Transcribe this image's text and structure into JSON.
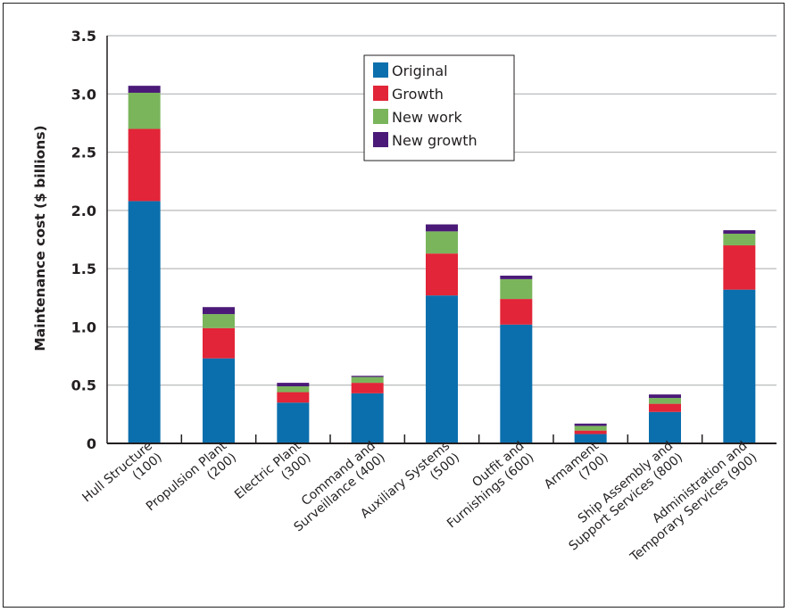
{
  "chart_data": {
    "type": "bar",
    "stacked": true,
    "title": "",
    "xlabel": "",
    "ylabel": "Maintenance cost ($ billions)",
    "ylim": [
      0,
      3.5
    ],
    "yticks": [
      "0",
      "0.5",
      "1.0",
      "1.5",
      "2.0",
      "2.5",
      "3.0",
      "3.5"
    ],
    "grid": true,
    "legend_position": "top-center",
    "categories": [
      [
        "Hull Structure",
        "(100)"
      ],
      [
        "Propulsion Plant",
        "(200)"
      ],
      [
        "Electric Plant",
        "(300)"
      ],
      [
        "Command and",
        "Surveillance (400)"
      ],
      [
        "Auxiliary Systems",
        "(500)"
      ],
      [
        "Outfit and",
        "Furnishings (600)"
      ],
      [
        "Armament",
        "(700)"
      ],
      [
        "Ship Assembly and",
        "Support Services (800)"
      ],
      [
        "Administration and",
        "Temporary Services (900)"
      ]
    ],
    "series": [
      {
        "name": "Original",
        "color": "#0b6fad",
        "values": [
          2.08,
          0.73,
          0.35,
          0.43,
          1.27,
          1.02,
          0.08,
          0.27,
          1.32
        ]
      },
      {
        "name": "Growth",
        "color": "#e22538",
        "values": [
          0.62,
          0.26,
          0.09,
          0.09,
          0.36,
          0.22,
          0.03,
          0.07,
          0.38
        ]
      },
      {
        "name": "New work",
        "color": "#7ab55c",
        "values": [
          0.31,
          0.12,
          0.05,
          0.05,
          0.19,
          0.17,
          0.04,
          0.05,
          0.1
        ]
      },
      {
        "name": "New growth",
        "color": "#4b1a78",
        "values": [
          0.06,
          0.06,
          0.03,
          0.01,
          0.06,
          0.03,
          0.02,
          0.03,
          0.03
        ]
      }
    ]
  }
}
